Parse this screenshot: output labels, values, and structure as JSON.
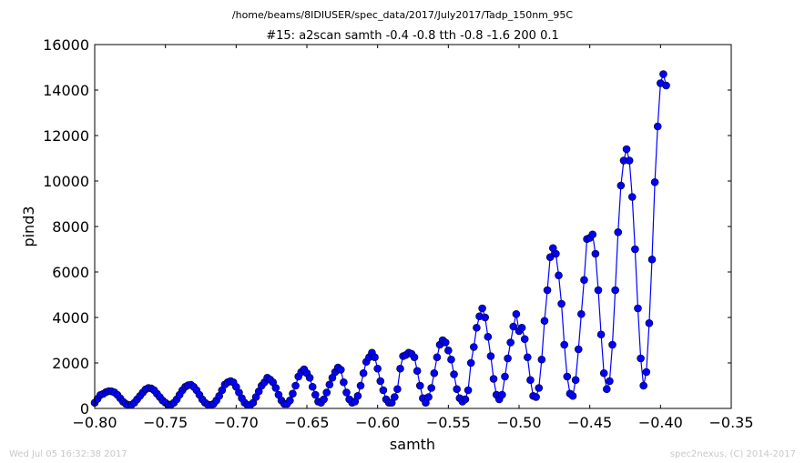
{
  "footer": {
    "timestamp": "Wed Jul 05 16:32:38 2017",
    "credit": "spec2nexus, (C) 2014-2017"
  },
  "chart_data": {
    "type": "line",
    "title": "/home/beams/8IDIUSER/spec_data/2017/July2017/Tadp_150nm_95C",
    "subtitle": "#15: a2scan  samth -0.4 -0.8  tth -0.8 -1.6  200 0.1",
    "xlabel": "samth",
    "ylabel": "pind3",
    "xlim": [
      -0.8,
      -0.35
    ],
    "ylim": [
      0,
      16000
    ],
    "xticks": [
      -0.8,
      -0.75,
      -0.7,
      -0.65,
      -0.6,
      -0.55,
      -0.5,
      -0.45,
      -0.4,
      -0.35
    ],
    "xtick_labels": [
      "−0.80",
      "−0.75",
      "−0.70",
      "−0.65",
      "−0.60",
      "−0.55",
      "−0.50",
      "−0.45",
      "−0.40",
      "−0.35"
    ],
    "yticks": [
      0,
      2000,
      4000,
      6000,
      8000,
      10000,
      12000,
      14000,
      16000
    ],
    "ytick_labels": [
      "0",
      "2000",
      "4000",
      "6000",
      "8000",
      "10000",
      "12000",
      "14000",
      "16000"
    ],
    "grid": false,
    "series_color": "#0000ff",
    "x_start": -0.8,
    "x_step": 0.002,
    "y": [
      250,
      420,
      590,
      640,
      720,
      760,
      750,
      700,
      600,
      450,
      300,
      200,
      150,
      160,
      250,
      400,
      550,
      700,
      840,
      900,
      880,
      800,
      650,
      500,
      350,
      250,
      170,
      170,
      250,
      400,
      600,
      800,
      950,
      1020,
      1040,
      950,
      800,
      600,
      400,
      250,
      170,
      150,
      200,
      350,
      550,
      800,
      1050,
      1150,
      1200,
      1150,
      950,
      700,
      450,
      250,
      150,
      150,
      250,
      500,
      750,
      1000,
      1150,
      1350,
      1270,
      1150,
      900,
      600,
      350,
      200,
      200,
      350,
      650,
      1000,
      1400,
      1600,
      1720,
      1550,
      1350,
      950,
      600,
      300,
      250,
      400,
      700,
      1050,
      1350,
      1600,
      1800,
      1700,
      1150,
      700,
      400,
      250,
      300,
      550,
      1000,
      1550,
      2050,
      2250,
      2450,
      2250,
      1750,
      1200,
      800,
      400,
      250,
      250,
      500,
      850,
      1750,
      2300,
      2350,
      2450,
      2400,
      2250,
      1650,
      1000,
      450,
      250,
      500,
      900,
      1550,
      2250,
      2800,
      3000,
      2900,
      2550,
      2150,
      1500,
      850,
      450,
      300,
      400,
      800,
      2000,
      2700,
      3550,
      4050,
      4400,
      4000,
      3150,
      2300,
      1300,
      600,
      400,
      600,
      1400,
      2200,
      2900,
      3600,
      4150,
      3400,
      3550,
      3050,
      2250,
      1250,
      550,
      500,
      900,
      2150,
      3850,
      5200,
      6650,
      7050,
      6800,
      5850,
      4600,
      2800,
      1400,
      650,
      550,
      1250,
      2600,
      4150,
      5650,
      7450,
      7500,
      7650,
      6800,
      5200,
      3250,
      1550,
      850,
      1200,
      2800,
      5200,
      7750,
      9800,
      10900,
      11400,
      10900,
      9300,
      7000,
      4400,
      2200,
      1000,
      1600,
      3750,
      6550,
      9950,
      12400,
      14300,
      14700,
      14200
    ]
  }
}
